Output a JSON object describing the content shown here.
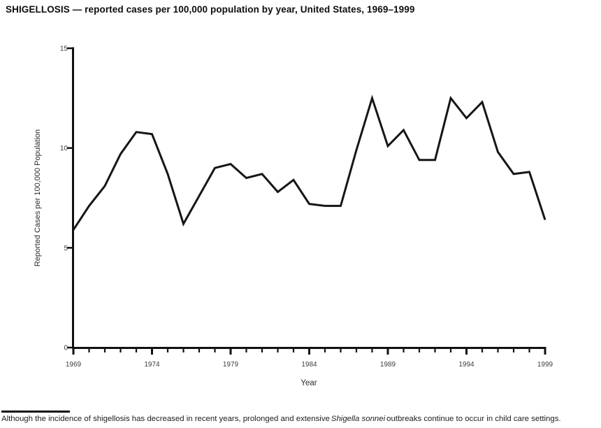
{
  "title": "SHIGELLOSIS — reported cases per 100,000 population by year, United States, 1969–1999",
  "chart_data": {
    "type": "line",
    "title": "SHIGELLOSIS — reported cases per 100,000 population by year, United States, 1969–1999",
    "xlabel": "Year",
    "ylabel": "Reported Cases per 100,000 Population",
    "ylim": [
      0,
      15
    ],
    "yticks": [
      0,
      5,
      10,
      15
    ],
    "xticks_labeled": [
      1969,
      1974,
      1979,
      1984,
      1989,
      1994,
      1999
    ],
    "grid": false,
    "legend": "none",
    "line_color": "#161616",
    "axis_color": "#111111",
    "tick_label_color": "#3d3d3d",
    "x": [
      1969,
      1970,
      1971,
      1972,
      1973,
      1974,
      1975,
      1976,
      1977,
      1978,
      1979,
      1980,
      1981,
      1982,
      1983,
      1984,
      1985,
      1986,
      1987,
      1988,
      1989,
      1990,
      1991,
      1992,
      1993,
      1994,
      1995,
      1996,
      1997,
      1998,
      1999
    ],
    "values": [
      5.9,
      7.1,
      8.1,
      9.7,
      10.8,
      10.7,
      8.7,
      6.2,
      7.6,
      9.0,
      9.2,
      8.5,
      8.7,
      7.8,
      8.4,
      7.2,
      7.1,
      7.1,
      9.9,
      12.5,
      10.1,
      10.9,
      9.4,
      9.4,
      12.5,
      11.5,
      12.3,
      9.8,
      8.7,
      8.8,
      6.4
    ]
  },
  "footnote": {
    "text_before": "Although the incidence of shigellosis has decreased in recent years, prolonged and extensive",
    "italic_species": "Shigella  sonnei",
    "text_after": "outbreaks continue to occur in child care settings."
  }
}
